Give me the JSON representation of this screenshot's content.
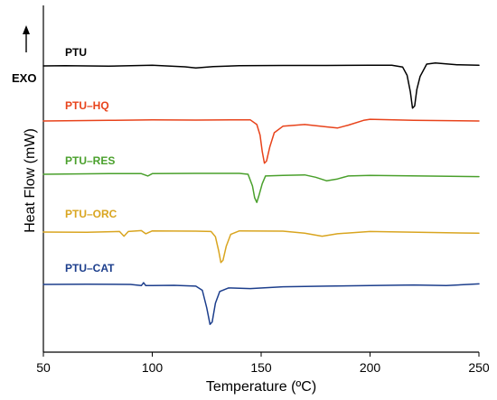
{
  "chart_data": {
    "type": "line",
    "xlabel": "Temperature (ºC)",
    "ylabel": "Heat Flow (mW)",
    "xlim": [
      50,
      250
    ],
    "xticks": [
      50,
      100,
      150,
      200,
      250
    ],
    "yticks_shown": false,
    "annotation": "EXO",
    "annotation_direction": "up",
    "series": [
      {
        "name": "PTU",
        "color": "#000000",
        "points": [
          [
            50,
            0
          ],
          [
            60,
            0.02
          ],
          [
            80,
            -0.02
          ],
          [
            100,
            0.05
          ],
          [
            115,
            -0.08
          ],
          [
            120,
            -0.18
          ],
          [
            128,
            -0.06
          ],
          [
            140,
            0.02
          ],
          [
            160,
            0.04
          ],
          [
            180,
            0.04
          ],
          [
            200,
            0.06
          ],
          [
            210,
            0.05
          ],
          [
            215,
            -0.1
          ],
          [
            217,
            -0.8
          ],
          [
            218.5,
            -2.2
          ],
          [
            219.5,
            -3.6
          ],
          [
            220.5,
            -3.4
          ],
          [
            221.5,
            -2.0
          ],
          [
            223,
            -0.9
          ],
          [
            226,
            0.15
          ],
          [
            230,
            0.25
          ],
          [
            240,
            0.1
          ],
          [
            250,
            0.05
          ]
        ]
      },
      {
        "name": "PTU–HQ",
        "color": "#e8431b",
        "points": [
          [
            50,
            0
          ],
          [
            80,
            0.05
          ],
          [
            100,
            0.1
          ],
          [
            120,
            0.08
          ],
          [
            140,
            0.1
          ],
          [
            145,
            0.1
          ],
          [
            148,
            -0.3
          ],
          [
            149.5,
            -1.2
          ],
          [
            150.5,
            -2.6
          ],
          [
            151.5,
            -3.6
          ],
          [
            152.5,
            -3.4
          ],
          [
            154,
            -2.2
          ],
          [
            156,
            -1.0
          ],
          [
            160,
            -0.45
          ],
          [
            170,
            -0.3
          ],
          [
            180,
            -0.5
          ],
          [
            185,
            -0.6
          ],
          [
            190,
            -0.35
          ],
          [
            197,
            0.05
          ],
          [
            200,
            0.15
          ],
          [
            220,
            0.05
          ],
          [
            250,
            0
          ]
        ]
      },
      {
        "name": "PTU–RES",
        "color": "#4aa02c",
        "points": [
          [
            50,
            0
          ],
          [
            80,
            0.05
          ],
          [
            95,
            0.05
          ],
          [
            98,
            -0.15
          ],
          [
            100,
            0.05
          ],
          [
            120,
            0.08
          ],
          [
            140,
            0.08
          ],
          [
            144,
            0.0
          ],
          [
            146,
            -1.0
          ],
          [
            147,
            -2.0
          ],
          [
            148,
            -2.4
          ],
          [
            149,
            -1.8
          ],
          [
            150.5,
            -0.8
          ],
          [
            152,
            -0.15
          ],
          [
            160,
            -0.1
          ],
          [
            170,
            -0.05
          ],
          [
            175,
            -0.25
          ],
          [
            180,
            -0.55
          ],
          [
            185,
            -0.4
          ],
          [
            190,
            -0.15
          ],
          [
            200,
            -0.1
          ],
          [
            250,
            -0.2
          ]
        ]
      },
      {
        "name": "PTU–ORC",
        "color": "#d9a520",
        "points": [
          [
            50,
            0
          ],
          [
            70,
            -0.02
          ],
          [
            85,
            0.05
          ],
          [
            87,
            -0.35
          ],
          [
            89,
            0.05
          ],
          [
            95,
            0.12
          ],
          [
            97,
            -0.15
          ],
          [
            100,
            0.1
          ],
          [
            120,
            0.08
          ],
          [
            127,
            0.05
          ],
          [
            129,
            -0.4
          ],
          [
            130.5,
            -1.6
          ],
          [
            131.5,
            -2.6
          ],
          [
            132.5,
            -2.4
          ],
          [
            134,
            -1.2
          ],
          [
            136,
            -0.2
          ],
          [
            140,
            0.1
          ],
          [
            160,
            0.08
          ],
          [
            170,
            -0.1
          ],
          [
            178,
            -0.35
          ],
          [
            185,
            -0.15
          ],
          [
            200,
            0.05
          ],
          [
            250,
            -0.1
          ]
        ]
      },
      {
        "name": "PTU–CAT",
        "color": "#1c3e8c",
        "points": [
          [
            50,
            0
          ],
          [
            70,
            0.02
          ],
          [
            90,
            0.0
          ],
          [
            95,
            -0.1
          ],
          [
            96,
            0.15
          ],
          [
            97,
            -0.1
          ],
          [
            100,
            -0.1
          ],
          [
            110,
            -0.08
          ],
          [
            120,
            -0.15
          ],
          [
            123,
            -0.5
          ],
          [
            125,
            -2.0
          ],
          [
            126.5,
            -3.4
          ],
          [
            127.5,
            -3.2
          ],
          [
            129,
            -1.6
          ],
          [
            131,
            -0.6
          ],
          [
            135,
            -0.3
          ],
          [
            145,
            -0.35
          ],
          [
            160,
            -0.2
          ],
          [
            180,
            -0.15
          ],
          [
            200,
            -0.1
          ],
          [
            220,
            -0.05
          ],
          [
            235,
            -0.1
          ],
          [
            245,
            0.0
          ],
          [
            250,
            0.05
          ]
        ]
      }
    ]
  }
}
